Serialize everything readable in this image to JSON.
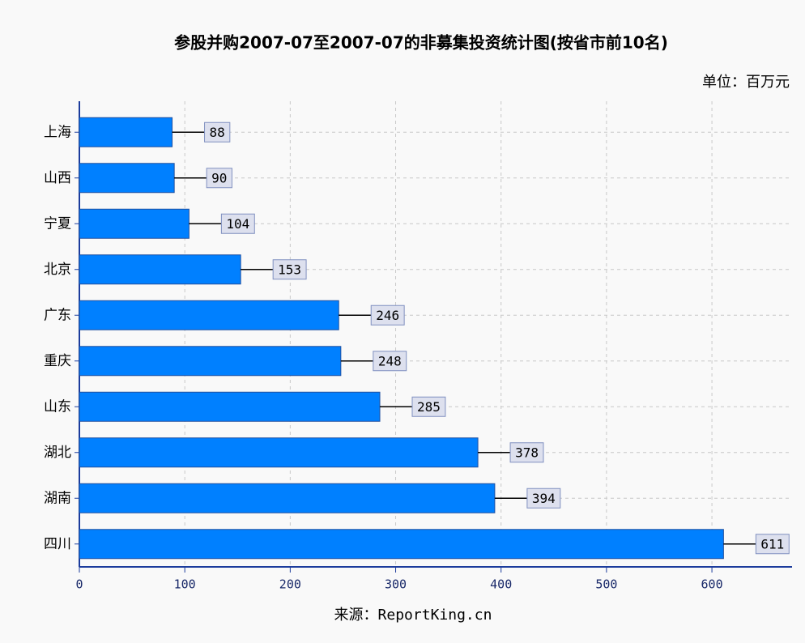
{
  "chart_data": {
    "type": "bar",
    "orientation": "horizontal",
    "title": "参股并购2007-07至2007-07的非募集投资统计图(按省市前10名)",
    "subtitle": "单位：百万元",
    "xlabel": "来源：ReportKing.cn",
    "categories": [
      "上海",
      "山西",
      "宁夏",
      "北京",
      "广东",
      "重庆",
      "山东",
      "湖北",
      "湖南",
      "四川"
    ],
    "values": [
      88,
      90,
      104,
      153,
      246,
      248,
      285,
      378,
      394,
      611
    ],
    "color": "#0080ff",
    "xlim": [
      0,
      676
    ],
    "xticks": [
      0,
      100,
      200,
      300,
      400,
      500,
      600
    ],
    "grid": true
  }
}
